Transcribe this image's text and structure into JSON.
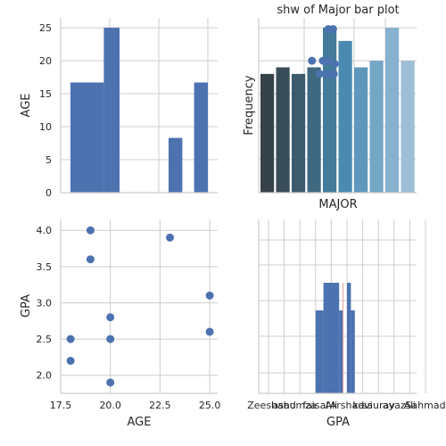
{
  "chart_data": [
    {
      "panel": "top-left",
      "type": "bar",
      "ylabel": "AGE",
      "xlim": [
        17.5,
        25.5
      ],
      "ylim": [
        0,
        26.5
      ],
      "yticks": [
        "0",
        "5",
        "10",
        "15",
        "20",
        "25"
      ],
      "grid": true,
      "bars": [
        {
          "x0": 18.0,
          "x1": 19.0,
          "value": 16.7
        },
        {
          "x0": 19.0,
          "x1": 19.7,
          "value": 16.7
        },
        {
          "x0": 19.7,
          "x1": 20.5,
          "value": 25.0
        },
        {
          "x0": 23.0,
          "x1": 23.7,
          "value": 8.3
        },
        {
          "x0": 24.3,
          "x1": 25.0,
          "value": 16.7
        }
      ]
    },
    {
      "panel": "top-right",
      "type": "bar",
      "title": "shw of Major bar plot",
      "xlabel": "MAJOR",
      "ylabel": "Frequency",
      "ylim": [
        0,
        26.5
      ],
      "grid": true,
      "values": [
        18,
        19,
        18,
        19,
        25,
        23,
        19,
        20,
        25,
        20
      ],
      "colors": [
        "#364249",
        "#384c59",
        "#3c5b6c",
        "#3e6980",
        "#437b98",
        "#4a8ab0",
        "#5e99bd",
        "#74a6c6",
        "#86b2cf",
        "#9cbfd6"
      ],
      "points": [
        {
          "x": 3.3,
          "y": 20.0
        },
        {
          "x": 3.8,
          "y": 18.0
        },
        {
          "x": 4.0,
          "y": 20.0
        },
        {
          "x": 4.2,
          "y": 18.0
        },
        {
          "x": 4.3,
          "y": 20.0
        },
        {
          "x": 4.35,
          "y": 24.8
        },
        {
          "x": 4.65,
          "y": 24.8
        },
        {
          "x": 4.7,
          "y": 18.0
        },
        {
          "x": 4.75,
          "y": 19.5
        },
        {
          "x": 4.5,
          "y": 18.0
        }
      ]
    },
    {
      "panel": "bottom-left",
      "type": "scatter",
      "xlabel": "AGE",
      "ylabel": "GPA",
      "xlim": [
        17.5,
        25.4
      ],
      "ylim": [
        1.75,
        4.15
      ],
      "xticks": [
        "17.5",
        "20.0",
        "22.5",
        "25.0"
      ],
      "yticks": [
        "2.0",
        "2.5",
        "3.0",
        "3.5",
        "4.0"
      ],
      "grid": true,
      "points": [
        {
          "x": 19,
          "y": 4.0
        },
        {
          "x": 23,
          "y": 3.9
        },
        {
          "x": 19,
          "y": 3.6
        },
        {
          "x": 25,
          "y": 3.1
        },
        {
          "x": 20,
          "y": 2.8
        },
        {
          "x": 25,
          "y": 2.6
        },
        {
          "x": 18,
          "y": 2.5
        },
        {
          "x": 20,
          "y": 2.5
        },
        {
          "x": 18,
          "y": 2.2
        },
        {
          "x": 20,
          "y": 1.9
        }
      ]
    },
    {
      "panel": "bottom-right",
      "type": "bar",
      "xlabel": "GPA",
      "xticks": [
        "Zeeshan",
        "asad",
        "humza",
        "faisal",
        "Ali",
        "Arshad",
        "kavi",
        "saurav",
        "ayaz",
        "Ali",
        "Sahmad"
      ],
      "grid": true,
      "bars": [
        {
          "x0": 3.0,
          "x1": 3.5,
          "value": 0.5
        },
        {
          "x0": 3.5,
          "x1": 4.5,
          "value": 1.0
        },
        {
          "x0": 4.5,
          "x1": 4.75,
          "value": 0.5
        },
        {
          "x0": 5.0,
          "x1": 5.25,
          "value": 1.0
        },
        {
          "x0": 5.25,
          "x1": 5.5,
          "value": 0.5
        }
      ],
      "reference_line": 4.75
    }
  ]
}
